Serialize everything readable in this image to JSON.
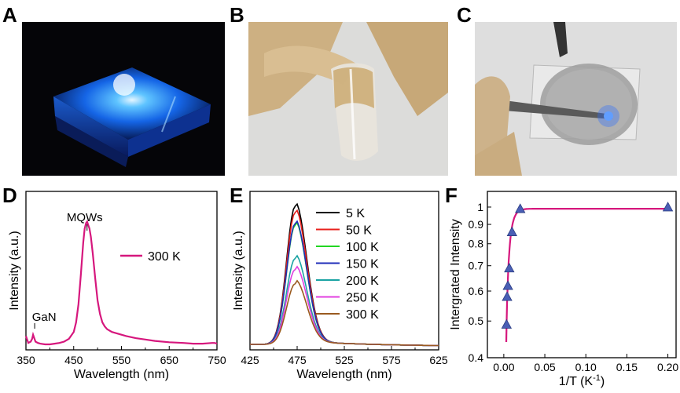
{
  "panels": {
    "a": {
      "letter": "A"
    },
    "b": {
      "letter": "B"
    },
    "c": {
      "letter": "C"
    },
    "d": {
      "letter": "D"
    },
    "e": {
      "letter": "E"
    },
    "f": {
      "letter": "F"
    }
  },
  "colors": {
    "magenta": "#d6177d",
    "glow_blue": "#2a8cff",
    "triangle": "#4a5fb5"
  },
  "chart_data": [
    {
      "id": "D",
      "type": "line",
      "xlabel": "Wavelength (nm)",
      "ylabel": "Intensity (a.u.)",
      "xlim": [
        350,
        750
      ],
      "ylim": [
        0,
        1.15
      ],
      "xticks": [
        350,
        450,
        550,
        650,
        750
      ],
      "annotations": [
        {
          "text": "MQWs",
          "x": 478
        },
        {
          "text": "GaN",
          "x": 365
        }
      ],
      "series": [
        {
          "name": "300 K",
          "color": "#d6177d",
          "x": [
            350,
            355,
            360,
            363,
            365,
            367,
            370,
            375,
            380,
            390,
            400,
            410,
            420,
            430,
            440,
            450,
            455,
            460,
            465,
            470,
            473,
            476,
            478,
            480,
            483,
            486,
            490,
            495,
            500,
            505,
            510,
            515,
            520,
            530,
            540,
            550,
            560,
            580,
            600,
            620,
            650,
            680,
            700,
            720,
            740,
            745,
            750
          ],
          "y": [
            0.1,
            0.05,
            0.06,
            0.08,
            0.11,
            0.09,
            0.06,
            0.05,
            0.045,
            0.04,
            0.04,
            0.045,
            0.05,
            0.06,
            0.08,
            0.13,
            0.2,
            0.33,
            0.55,
            0.78,
            0.88,
            0.92,
            0.93,
            0.91,
            0.88,
            0.82,
            0.7,
            0.52,
            0.36,
            0.26,
            0.2,
            0.17,
            0.15,
            0.13,
            0.12,
            0.11,
            0.1,
            0.085,
            0.075,
            0.065,
            0.055,
            0.05,
            0.045,
            0.045,
            0.05,
            0.05,
            0.045
          ]
        }
      ]
    },
    {
      "id": "E",
      "type": "line",
      "xlabel": "Wavelength (nm)",
      "ylabel": "Intensity (a.u.)",
      "xlim": [
        425,
        625
      ],
      "ylim": [
        0,
        1.0
      ],
      "xticks": [
        425,
        475,
        525,
        575,
        625
      ],
      "peak_nm": 473,
      "series": [
        {
          "name": "5 K",
          "color": "#000000",
          "peak": 0.91
        },
        {
          "name": "50 K",
          "color": "#e8201c",
          "peak": 0.87
        },
        {
          "name": "100 K",
          "color": "#22d622",
          "peak": 0.79
        },
        {
          "name": "150 K",
          "color": "#1f2db8",
          "peak": 0.8
        },
        {
          "name": "200 K",
          "color": "#1aa3a3",
          "peak": 0.58
        },
        {
          "name": "250 K",
          "color": "#e13fe0",
          "peak": 0.51
        },
        {
          "name": "300 K",
          "color": "#9a5a1f",
          "peak": 0.42
        }
      ]
    },
    {
      "id": "F",
      "type": "scatter",
      "xlabel": "1/T (K",
      "xlabel_sup": "-1",
      "xlabel_end": ")",
      "ylabel": "Intergrated Intensity",
      "xlim": [
        -0.02,
        0.21
      ],
      "ylim": [
        0.4,
        1.1
      ],
      "yscale": "log",
      "xticks": [
        0.0,
        0.05,
        0.1,
        0.15,
        0.2
      ],
      "xtick_labels": [
        "0.00",
        "0.05",
        "0.10",
        "0.15",
        "0.20"
      ],
      "yticks": [
        0.4,
        0.5,
        0.6,
        0.7,
        0.8,
        0.9,
        1
      ],
      "ytick_labels": [
        "0.4",
        "0.5",
        "0.6",
        "0.7",
        "0.8",
        "0.9",
        "1"
      ],
      "points": {
        "x": [
          0.2,
          0.02,
          0.01,
          0.00667,
          0.005,
          0.004,
          0.00333
        ],
        "y": [
          1.0,
          0.99,
          0.86,
          0.69,
          0.62,
          0.58,
          0.49
        ]
      },
      "fit_color": "#d6177d"
    }
  ]
}
